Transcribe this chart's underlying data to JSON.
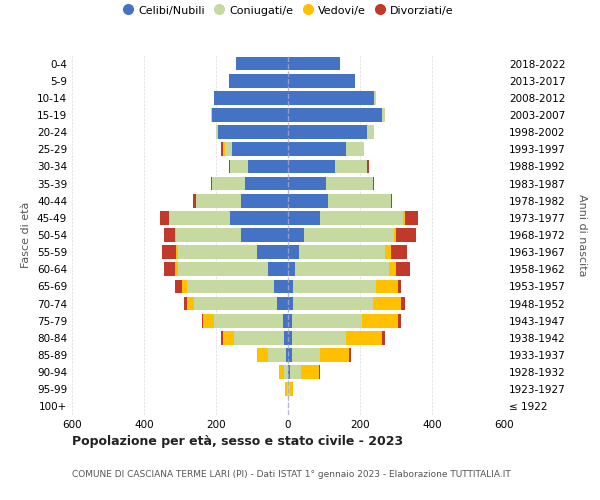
{
  "age_groups": [
    "100+",
    "95-99",
    "90-94",
    "85-89",
    "80-84",
    "75-79",
    "70-74",
    "65-69",
    "60-64",
    "55-59",
    "50-54",
    "45-49",
    "40-44",
    "35-39",
    "30-34",
    "25-29",
    "20-24",
    "15-19",
    "10-14",
    "5-9",
    "0-4"
  ],
  "birth_years": [
    "≤ 1922",
    "1923-1927",
    "1928-1932",
    "1933-1937",
    "1938-1942",
    "1943-1947",
    "1948-1952",
    "1953-1957",
    "1958-1962",
    "1963-1967",
    "1968-1972",
    "1973-1977",
    "1978-1982",
    "1983-1987",
    "1988-1992",
    "1993-1997",
    "1998-2002",
    "2003-2007",
    "2008-2012",
    "2013-2017",
    "2018-2022"
  ],
  "male": {
    "celibi": [
      0,
      0,
      0,
      5,
      10,
      15,
      30,
      40,
      55,
      85,
      130,
      160,
      130,
      120,
      110,
      155,
      195,
      210,
      205,
      165,
      145
    ],
    "coniugati": [
      0,
      2,
      10,
      50,
      140,
      190,
      230,
      240,
      250,
      220,
      180,
      170,
      125,
      90,
      50,
      20,
      5,
      5,
      0,
      0,
      0
    ],
    "vedovi": [
      0,
      5,
      15,
      30,
      30,
      30,
      20,
      15,
      10,
      5,
      5,
      0,
      0,
      0,
      0,
      5,
      0,
      0,
      0,
      0,
      0
    ],
    "divorziati": [
      0,
      0,
      0,
      0,
      5,
      5,
      10,
      20,
      30,
      40,
      30,
      25,
      10,
      5,
      5,
      5,
      0,
      0,
      0,
      0,
      0
    ]
  },
  "female": {
    "nubili": [
      0,
      0,
      5,
      10,
      10,
      10,
      15,
      15,
      20,
      30,
      45,
      90,
      110,
      105,
      130,
      160,
      220,
      260,
      240,
      185,
      145
    ],
    "coniugate": [
      0,
      5,
      30,
      80,
      150,
      195,
      220,
      230,
      260,
      240,
      250,
      230,
      175,
      130,
      90,
      50,
      20,
      10,
      5,
      0,
      0
    ],
    "vedove": [
      0,
      10,
      50,
      80,
      100,
      100,
      80,
      60,
      20,
      15,
      5,
      5,
      0,
      0,
      0,
      0,
      0,
      0,
      0,
      0,
      0
    ],
    "divorziate": [
      0,
      0,
      5,
      5,
      10,
      10,
      10,
      10,
      40,
      45,
      55,
      35,
      5,
      5,
      5,
      0,
      0,
      0,
      0,
      0,
      0
    ]
  },
  "colors": {
    "celibi_nubili": "#4472c4",
    "coniugati": "#c5d9a0",
    "vedovi": "#ffc000",
    "divorziati": "#c0392b"
  },
  "xlim": 600,
  "title": "Popolazione per età, sesso e stato civile - 2023",
  "subtitle": "COMUNE DI CASCIANA TERME LARI (PI) - Dati ISTAT 1° gennaio 2023 - Elaborazione TUTTITALIA.IT",
  "ylabel": "Fasce di età",
  "ylabel_right": "Anni di nascita",
  "bg_color": "#ffffff",
  "grid_color": "#cccccc"
}
